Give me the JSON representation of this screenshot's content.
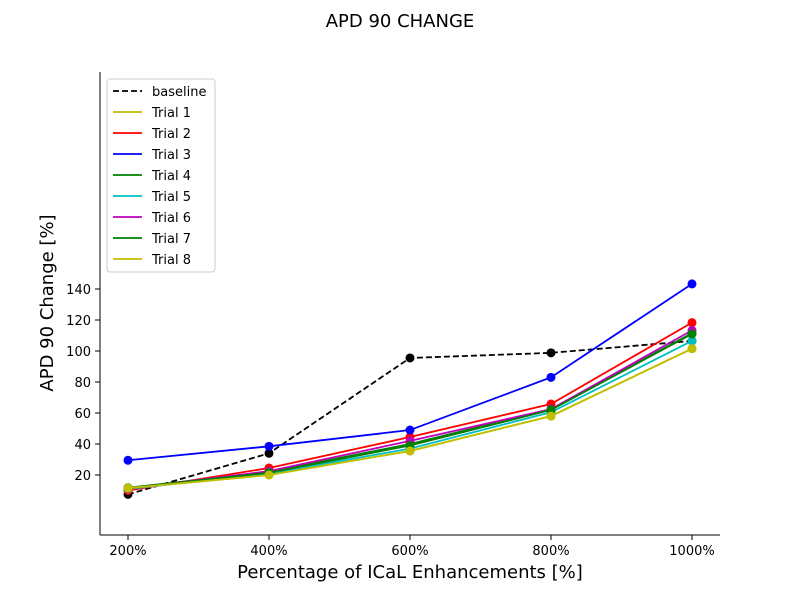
{
  "chart_data": {
    "type": "line",
    "title": "APD 90 CHANGE",
    "xlabel": "Percentage of ICaL Enhancements [%]",
    "ylabel": "APD 90 Change [%]",
    "categories": [
      "200%",
      "400%",
      "600%",
      "800%",
      "1000%"
    ],
    "ylim": [
      0,
      150
    ],
    "yticks": [
      20,
      40,
      60,
      80,
      100,
      120,
      140
    ],
    "grid": false,
    "legend_position": "top-left",
    "series": [
      {
        "name": "baseline",
        "color": "#000000",
        "dashed": true,
        "values": [
          7.5,
          34,
          95.5,
          98.8,
          106.5
        ]
      },
      {
        "name": "Trial 1",
        "color": "#bfbf00",
        "dashed": false,
        "values": [
          11.5,
          20,
          35.5,
          58,
          101.5
        ]
      },
      {
        "name": "Trial 2",
        "color": "#ff0000",
        "dashed": false,
        "values": [
          10,
          24.5,
          44.5,
          65.8,
          118.3
        ]
      },
      {
        "name": "Trial 3",
        "color": "#0000ff",
        "dashed": false,
        "values": [
          29.5,
          38.5,
          49,
          83,
          143.3
        ]
      },
      {
        "name": "Trial 4",
        "color": "#008000",
        "dashed": false,
        "values": [
          11.8,
          22,
          40,
          62.5,
          111.5
        ]
      },
      {
        "name": "Trial 5",
        "color": "#00bfbf",
        "dashed": false,
        "values": [
          11,
          21,
          37,
          60.5,
          106.5
        ]
      },
      {
        "name": "Trial 6",
        "color": "#bf00bf",
        "dashed": false,
        "values": [
          11.2,
          22.5,
          42,
          62.5,
          113.3
        ]
      },
      {
        "name": "Trial 7",
        "color": "#008000",
        "dashed": false,
        "values": [
          11.5,
          21.5,
          39,
          62,
          111
        ]
      },
      {
        "name": "Trial 8",
        "color": "#bfbf00",
        "dashed": false,
        "values": [
          11.5,
          20,
          35.5,
          58,
          101.5
        ]
      }
    ]
  }
}
